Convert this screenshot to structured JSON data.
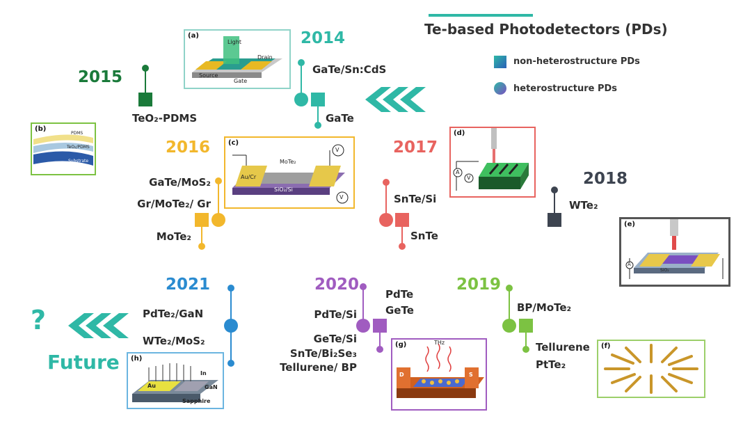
{
  "title": "Te-based Photodetectors (PDs)",
  "legend": {
    "non_hetero": "non-heterostructure PDs",
    "hetero": "heterostructure PDs"
  },
  "colors": {
    "y2015": "#1a7a3a",
    "y2014": "#2fb8a6",
    "y2016": "#f2b72c",
    "y2017": "#e8635f",
    "y2018": "#3d4450",
    "y2019": "#7cc242",
    "y2020": "#a05cc0",
    "y2021": "#2a8bd0"
  },
  "years": {
    "y2014": "2014",
    "y2015": "2015",
    "y2016": "2016",
    "y2017": "2017",
    "y2018": "2018",
    "y2019": "2019",
    "y2020": "2020",
    "y2021": "2021"
  },
  "labels": {
    "gate_sncds": "GaTe/Sn:CdS",
    "gate": "GaTe",
    "teo2_pdms": "TeO₂-PDMS",
    "gate_mos2": "GaTe/MoS₂",
    "gr_mote2_gr": "Gr/MoTe₂/ Gr",
    "mote2": "MoTe₂",
    "snte_si": "SnTe/Si",
    "snte": "SnTe",
    "wte2": "WTe₂",
    "bp_mote2": "BP/MoTe₂",
    "tellurene": "Tellurene",
    "ptte2": "PtTe₂",
    "pdte": "PdTe",
    "gete": "GeTe",
    "pdte_si": "PdTe/Si",
    "gete_si": "GeTe/Si",
    "snte_bi2se3": "SnTe/Bi₂Se₃",
    "tellurene_bp": "Tellurene/ BP",
    "pdte2_gan": "PdTe₂/GaN",
    "wte2_mos2": "WTe₂/MoS₂"
  },
  "future": {
    "question": "?",
    "word": "Future"
  },
  "panels": {
    "a": {
      "tag": "(a)",
      "t1": "Light",
      "t2": "Drain",
      "t3": "Source",
      "t4": "Gate"
    },
    "b": {
      "tag": "(b)",
      "t1": "PDMS",
      "t2": "TeO₂/PDMS",
      "t3": "Substrate"
    },
    "c": {
      "tag": "(c)",
      "t1": "MoTe₂",
      "t2": "Au/Cr",
      "t3": "SiO₂/Si",
      "t4": "V",
      "t5": "V"
    },
    "d": {
      "tag": "(d)",
      "t1": "A",
      "t2": "V"
    },
    "e": {
      "tag": "(e)",
      "t1": "A",
      "t2": "SiO₂"
    },
    "f": {
      "tag": "(f)"
    },
    "g": {
      "tag": "(g)",
      "t1": "THz",
      "t2": "D",
      "t3": "S"
    },
    "h": {
      "tag": "(h)",
      "t1": "Au",
      "t2": "In",
      "t3": "GaN",
      "t4": "Sapphire"
    }
  }
}
